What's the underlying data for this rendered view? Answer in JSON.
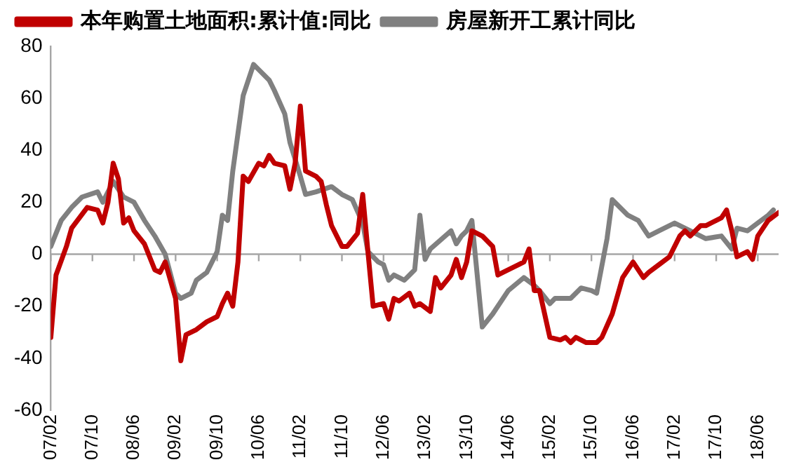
{
  "chart_data": {
    "type": "line",
    "legend": "top",
    "grid": false,
    "ref_lines": [
      {
        "axis": "y",
        "value": 0,
        "color": "#a6a6a6"
      }
    ],
    "marker": "none",
    "line_style": "solid",
    "xlim": [
      "2007-02",
      "2018-10"
    ],
    "ylim": [
      -60,
      80
    ],
    "yticks": [
      -60,
      -40,
      -20,
      0,
      20,
      40,
      60,
      80
    ],
    "xticks": [
      {
        "value": "2007-02",
        "label": "07/02"
      },
      {
        "value": "2007-10",
        "label": "07/10"
      },
      {
        "value": "2008-06",
        "label": "08/06"
      },
      {
        "value": "2009-02",
        "label": "09/02"
      },
      {
        "value": "2009-10",
        "label": "09/10"
      },
      {
        "value": "2010-06",
        "label": "10/06"
      },
      {
        "value": "2011-02",
        "label": "11/02"
      },
      {
        "value": "2011-10",
        "label": "11/10"
      },
      {
        "value": "2012-06",
        "label": "12/06"
      },
      {
        "value": "2013-02",
        "label": "13/02"
      },
      {
        "value": "2013-10",
        "label": "13/10"
      },
      {
        "value": "2014-06",
        "label": "14/06"
      },
      {
        "value": "2015-02",
        "label": "15/02"
      },
      {
        "value": "2015-10",
        "label": "15/10"
      },
      {
        "value": "2016-06",
        "label": "16/06"
      },
      {
        "value": "2017-02",
        "label": "17/02"
      },
      {
        "value": "2017-10",
        "label": "17/10"
      },
      {
        "value": "2018-06",
        "label": "18/06"
      }
    ],
    "series": [
      {
        "name": "本年购置土地面积:累计值:同比",
        "color": "#c00000",
        "x": [
          "2007-02",
          "2007-03",
          "2007-05",
          "2007-06",
          "2007-09",
          "2007-11",
          "2007-12",
          "2008-01",
          "2008-02",
          "2008-03",
          "2008-04",
          "2008-05",
          "2008-06",
          "2008-08",
          "2008-09",
          "2008-10",
          "2008-11",
          "2008-12",
          "2009-02",
          "2009-03",
          "2009-04",
          "2009-06",
          "2009-08",
          "2009-10",
          "2009-11",
          "2009-12",
          "2010-01",
          "2010-02",
          "2010-03",
          "2010-04",
          "2010-06",
          "2010-07",
          "2010-08",
          "2010-09",
          "2010-11",
          "2010-12",
          "2011-01",
          "2011-02",
          "2011-03",
          "2011-05",
          "2011-06",
          "2011-07",
          "2011-08",
          "2011-10",
          "2011-11",
          "2012-01",
          "2012-02",
          "2012-03",
          "2012-04",
          "2012-06",
          "2012-07",
          "2012-08",
          "2012-09",
          "2012-11",
          "2012-12",
          "2013-01",
          "2013-03",
          "2013-04",
          "2013-05",
          "2013-07",
          "2013-08",
          "2013-09",
          "2013-10",
          "2013-11",
          "2014-01",
          "2014-03",
          "2014-04",
          "2014-05",
          "2014-08",
          "2014-09",
          "2014-10",
          "2014-11",
          "2014-12",
          "2015-02",
          "2015-04",
          "2015-05",
          "2015-06",
          "2015-07",
          "2015-09",
          "2015-11",
          "2015-12",
          "2016-02",
          "2016-04",
          "2016-05",
          "2016-06",
          "2016-08",
          "2016-09",
          "2016-11",
          "2017-01",
          "2017-03",
          "2017-04",
          "2017-05",
          "2017-07",
          "2017-08",
          "2017-10",
          "2017-11",
          "2017-12",
          "2018-01",
          "2018-02",
          "2018-04",
          "2018-05",
          "2018-06",
          "2018-08",
          "2018-10"
        ],
        "values": [
          -32,
          -8,
          3,
          10,
          18,
          17,
          12,
          20,
          35,
          29,
          12,
          14,
          9,
          4,
          -1,
          -6,
          -7,
          -3,
          -17,
          -41,
          -31,
          -29,
          -26,
          -24,
          -19,
          -15,
          -20,
          -3,
          30,
          28,
          35,
          34,
          38,
          35,
          34,
          25,
          35,
          57,
          32,
          30,
          28,
          19,
          11,
          3,
          3,
          8,
          23,
          1,
          -20,
          -19,
          -25,
          -17,
          -18,
          -15,
          -20,
          -19,
          -22,
          -9,
          -13,
          -8,
          -2,
          -9,
          -3,
          9,
          7,
          3,
          -8,
          -7,
          -4,
          -3,
          2,
          -14,
          -14,
          -32,
          -33,
          -32,
          -34,
          -32,
          -34,
          -34,
          -32,
          -23,
          -9,
          -6,
          -3,
          -9,
          -7,
          -4,
          -1,
          7,
          9,
          7,
          11,
          11,
          13,
          14,
          17,
          9,
          -1,
          1,
          -2,
          7,
          13,
          16
        ]
      },
      {
        "name": "房屋新开工累计同比",
        "color": "#808080",
        "x": [
          "2007-02",
          "2007-04",
          "2007-06",
          "2007-08",
          "2007-11",
          "2007-12",
          "2008-02",
          "2008-04",
          "2008-06",
          "2008-08",
          "2008-10",
          "2008-12",
          "2009-02",
          "2009-03",
          "2009-05",
          "2009-06",
          "2009-08",
          "2009-10",
          "2009-11",
          "2009-12",
          "2010-01",
          "2010-03",
          "2010-05",
          "2010-06",
          "2010-08",
          "2010-09",
          "2010-11",
          "2010-12",
          "2011-02",
          "2011-03",
          "2011-05",
          "2011-08",
          "2011-10",
          "2011-12",
          "2012-02",
          "2012-03",
          "2012-05",
          "2012-06",
          "2012-07",
          "2012-08",
          "2012-10",
          "2012-11",
          "2012-12",
          "2013-01",
          "2013-02",
          "2013-03",
          "2013-07",
          "2013-08",
          "2013-09",
          "2013-10",
          "2013-11",
          "2014-01",
          "2014-03",
          "2014-06",
          "2014-09",
          "2014-11",
          "2014-12",
          "2015-02",
          "2015-03",
          "2015-06",
          "2015-08",
          "2015-10",
          "2015-11",
          "2016-01",
          "2016-02",
          "2016-05",
          "2016-07",
          "2016-09",
          "2016-11",
          "2017-02",
          "2017-05",
          "2017-08",
          "2017-11",
          "2018-01",
          "2018-02",
          "2018-04",
          "2018-06",
          "2018-08",
          "2018-09"
        ],
        "values": [
          3,
          13,
          18,
          22,
          24,
          20,
          28,
          22,
          20,
          13,
          7,
          0,
          -15,
          -17,
          -15,
          -10,
          -7,
          1,
          15,
          13,
          32,
          61,
          73,
          71,
          67,
          63,
          54,
          43,
          30,
          23,
          24,
          26,
          23,
          21,
          12,
          1,
          -3,
          -4,
          -10,
          -8,
          -10,
          -8,
          -6,
          15,
          -2,
          2,
          9,
          4,
          7,
          9,
          13,
          -28,
          -23,
          -14,
          -9,
          -12,
          -14,
          -19,
          -17,
          -17,
          -13,
          -14,
          -15,
          6,
          21,
          15,
          13,
          7,
          9,
          12,
          9,
          6,
          7,
          2,
          10,
          9,
          12,
          15,
          17
        ]
      }
    ]
  }
}
